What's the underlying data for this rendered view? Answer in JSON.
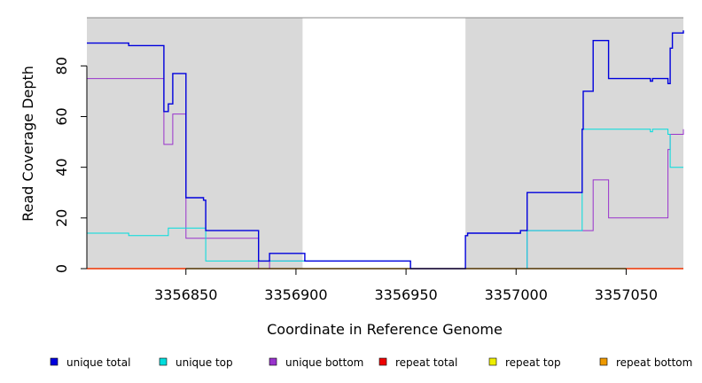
{
  "chart_data": {
    "type": "line",
    "step": true,
    "title": "",
    "xlabel": "Coordinate in Reference Genome",
    "ylabel": "Read Coverage Depth",
    "xlim": [
      3356805,
      3357076
    ],
    "ylim": [
      0,
      99
    ],
    "x_ticks": [
      3356850,
      3356900,
      3356950,
      3357000,
      3357050
    ],
    "y_ticks": [
      0,
      20,
      40,
      60,
      80
    ],
    "grid": false,
    "shaded_regions": [
      {
        "x0": 3356805,
        "x1": 3356903,
        "color": "#d9d9d9"
      },
      {
        "x0": 3356977,
        "x1": 3357076,
        "color": "#d9d9d9"
      }
    ],
    "legend_position": "bottom",
    "series": [
      {
        "name": "unique total",
        "color": "#0000dd",
        "points": [
          [
            3356805,
            89
          ],
          [
            3356824,
            88
          ],
          [
            3356840,
            62
          ],
          [
            3356842,
            65
          ],
          [
            3356844,
            77
          ],
          [
            3356850,
            28
          ],
          [
            3356858,
            27
          ],
          [
            3356859,
            15
          ],
          [
            3356883,
            3
          ],
          [
            3356888,
            6
          ],
          [
            3356904,
            3
          ],
          [
            3356952,
            0
          ],
          [
            3356977,
            13
          ],
          [
            3356978,
            14
          ],
          [
            3357002,
            15
          ],
          [
            3357005,
            30
          ],
          [
            3357030,
            55
          ],
          [
            3357030.5,
            70
          ],
          [
            3357035,
            90
          ],
          [
            3357042,
            75
          ],
          [
            3357061,
            74
          ],
          [
            3357062,
            75
          ],
          [
            3357069,
            73
          ],
          [
            3357070,
            87
          ],
          [
            3357071,
            93
          ],
          [
            3357076,
            94
          ]
        ]
      },
      {
        "name": "unique top",
        "color": "#00dddd",
        "points": [
          [
            3356805,
            14
          ],
          [
            3356824,
            13
          ],
          [
            3356842,
            16
          ],
          [
            3356859,
            3
          ],
          [
            3356883,
            3
          ],
          [
            3356888,
            3
          ],
          [
            3356904,
            3
          ],
          [
            3356952,
            0
          ],
          [
            3356977,
            0
          ],
          [
            3357005,
            15
          ],
          [
            3357030,
            55
          ],
          [
            3357061,
            54
          ],
          [
            3357062,
            55
          ],
          [
            3357069,
            53
          ],
          [
            3357070,
            40
          ],
          [
            3357076,
            40
          ]
        ]
      },
      {
        "name": "unique bottom",
        "color": "#9933cc",
        "points": [
          [
            3356805,
            75
          ],
          [
            3356840,
            49
          ],
          [
            3356844,
            61
          ],
          [
            3356850,
            12
          ],
          [
            3356883,
            0
          ],
          [
            3356888,
            3
          ],
          [
            3356904,
            3
          ],
          [
            3356952,
            0
          ],
          [
            3356977,
            0
          ],
          [
            3357005,
            15
          ],
          [
            3357035,
            35
          ],
          [
            3357042,
            20
          ],
          [
            3357069,
            47
          ],
          [
            3357070,
            53
          ],
          [
            3357076,
            55
          ]
        ]
      },
      {
        "name": "repeat total",
        "color": "#ee0000",
        "points": [
          [
            3356805,
            0
          ],
          [
            3357076,
            0
          ]
        ]
      },
      {
        "name": "repeat top",
        "color": "#eeee00",
        "points": [
          [
            3356805,
            0
          ],
          [
            3357076,
            0
          ]
        ]
      },
      {
        "name": "repeat bottom",
        "color": "#ee9900",
        "points": [
          [
            3356805,
            0
          ],
          [
            3357076,
            0
          ]
        ]
      }
    ]
  }
}
